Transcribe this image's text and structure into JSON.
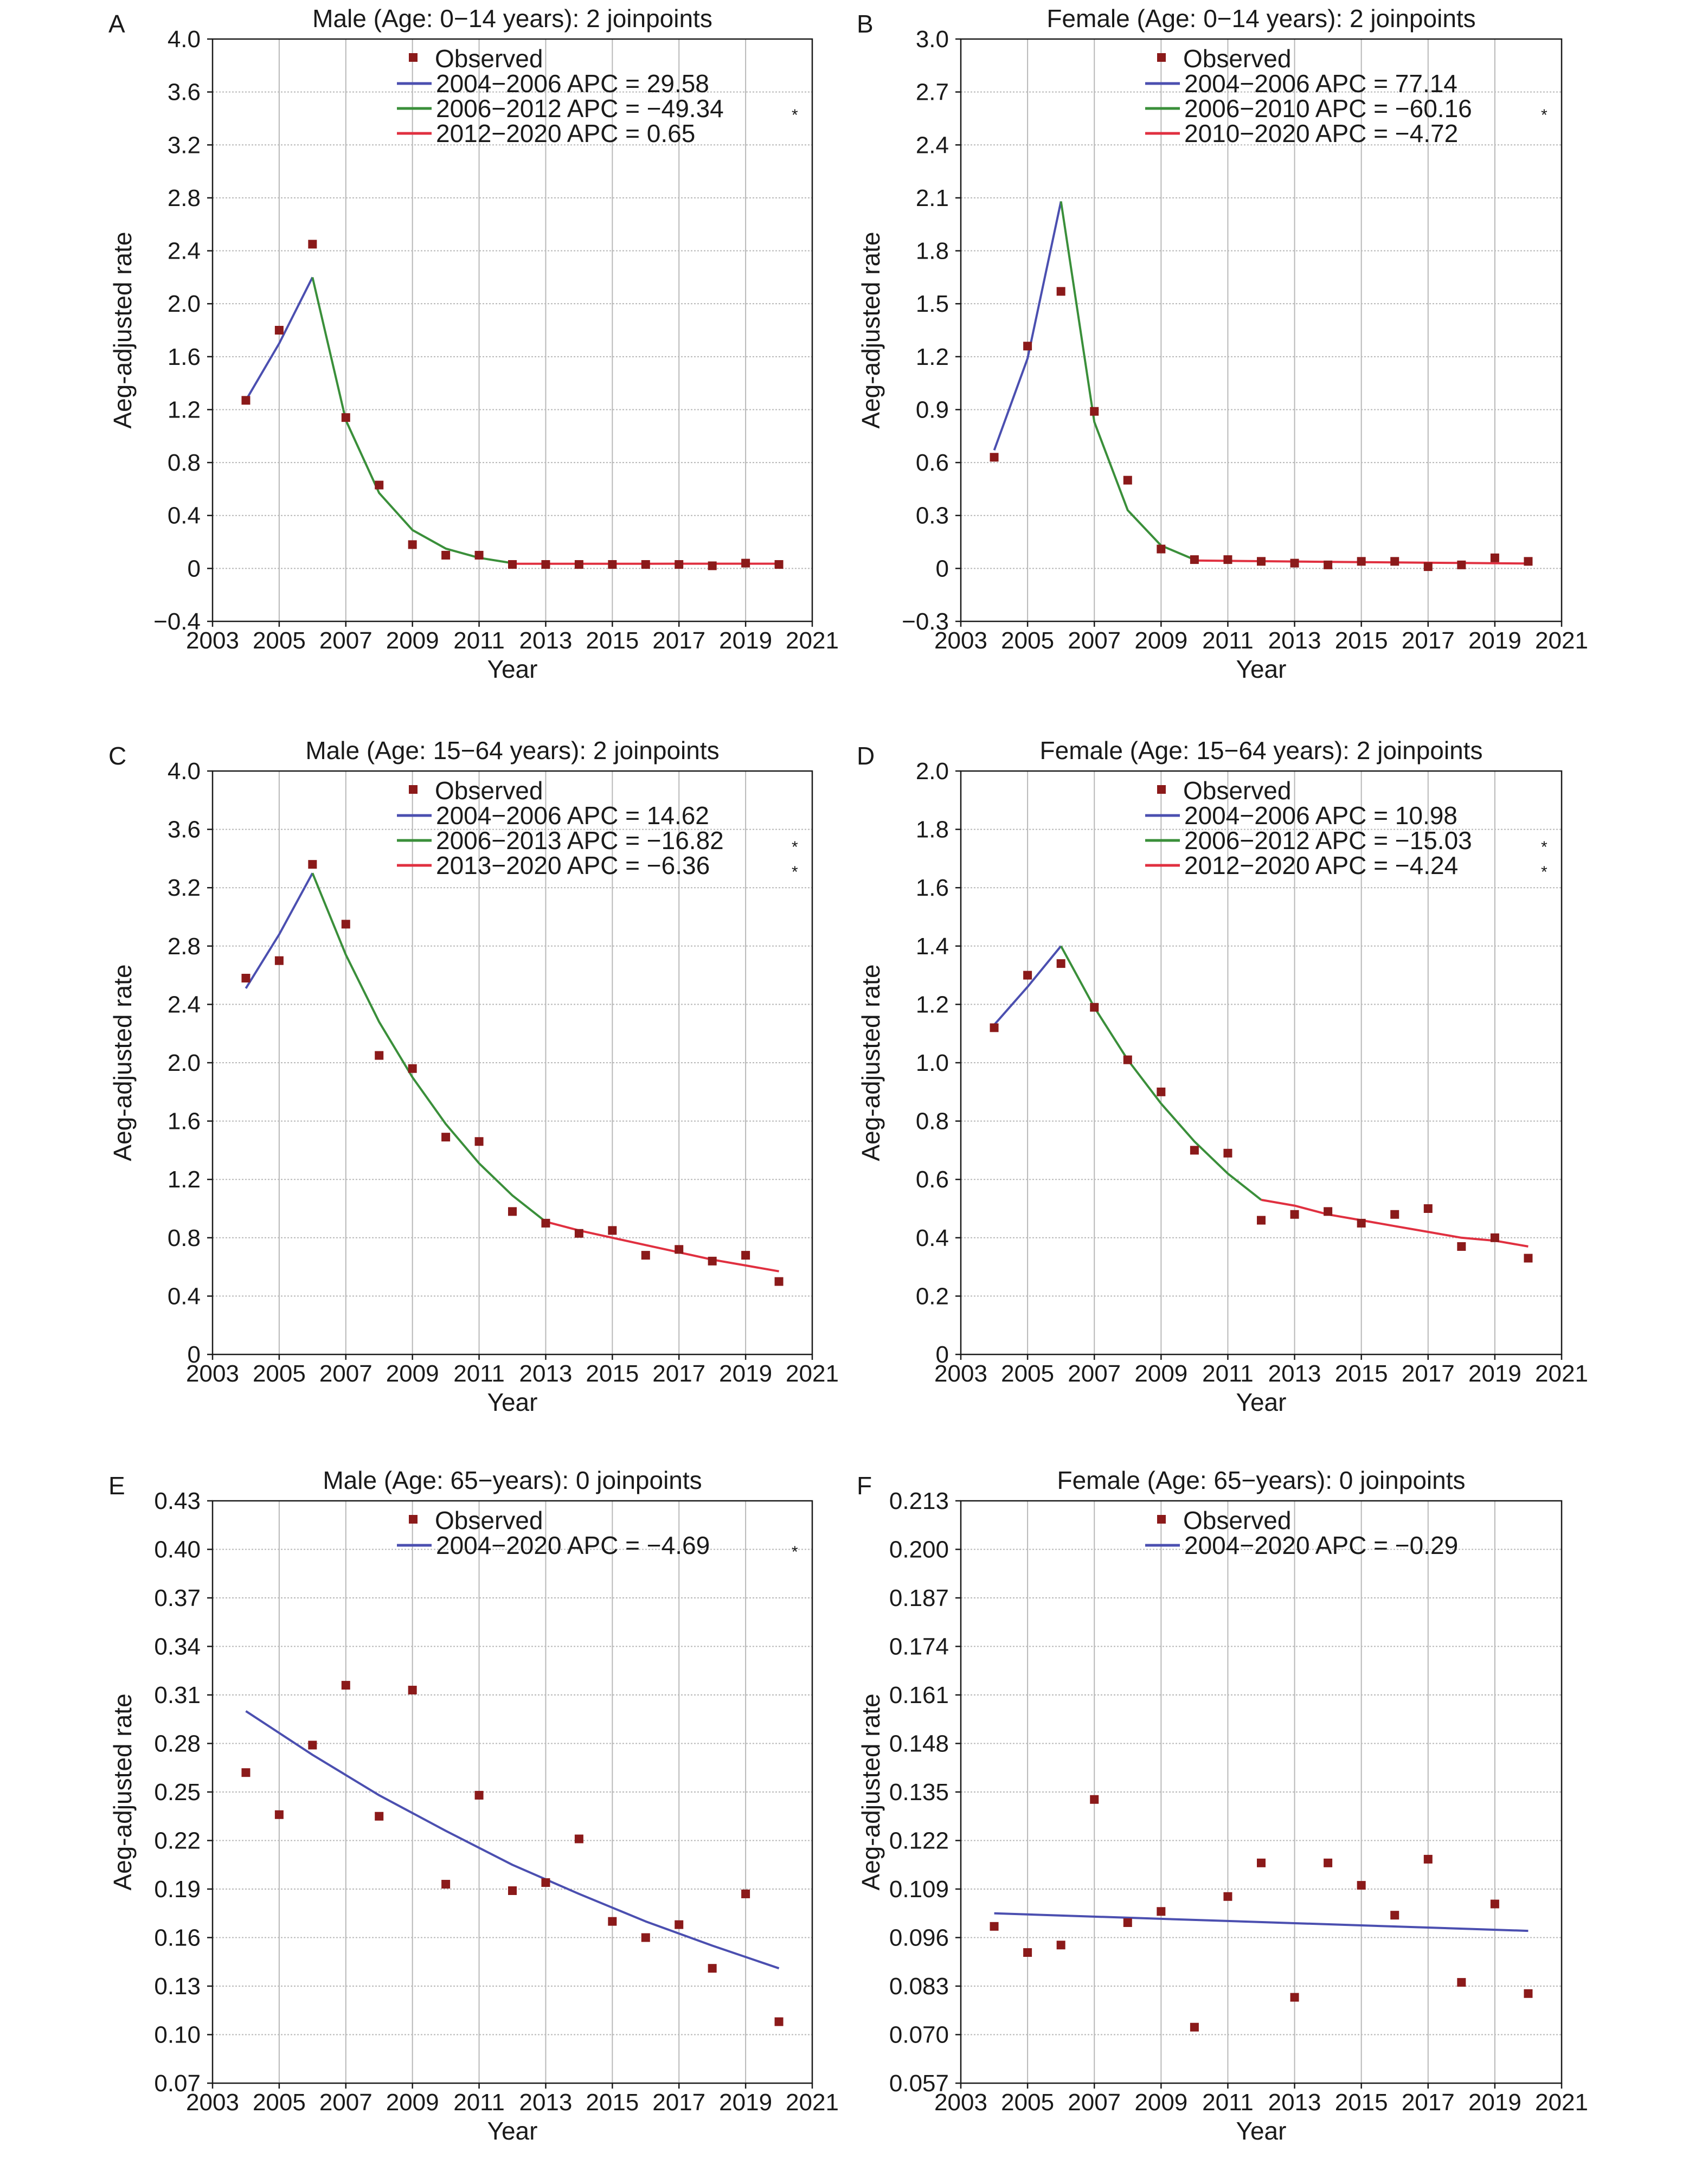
{
  "chart_data": [
    {
      "type": "line",
      "panel": "A",
      "title": "Male (Age: 0−14 years): 2 joinpoints",
      "xlabel": "Year",
      "ylabel": "Aeg-adjusted rate",
      "xlim": [
        2003,
        2021
      ],
      "x_ticks": [
        "2003",
        "2005",
        "2007",
        "2009",
        "2011",
        "2013",
        "2015",
        "2017",
        "2019",
        "2021"
      ],
      "ylim": [
        -0.4,
        4.0
      ],
      "y_ticks": [
        "−0.4",
        "0",
        "0.4",
        "0.8",
        "1.2",
        "1.6",
        "2.0",
        "2.4",
        "2.8",
        "3.2",
        "3.6",
        "4.0"
      ],
      "grid": true,
      "legend_position": "top",
      "observed_label": "Observed",
      "observed_color": "#8b1a1a",
      "observed": {
        "x": [
          2004,
          2005,
          2006,
          2007,
          2008,
          2009,
          2010,
          2011,
          2012,
          2013,
          2014,
          2015,
          2016,
          2017,
          2018,
          2019,
          2020
        ],
        "y": [
          1.27,
          1.8,
          2.45,
          1.14,
          0.63,
          0.18,
          0.1,
          0.1,
          0.03,
          0.03,
          0.03,
          0.03,
          0.03,
          0.03,
          0.02,
          0.04,
          0.03
        ]
      },
      "series": [
        {
          "name": "2004−2006 APC = 29.58",
          "significant": false,
          "color": "#4b4fb0",
          "x": [
            2004,
            2005,
            2006
          ],
          "y": [
            1.27,
            1.7,
            2.2
          ]
        },
        {
          "name": "2006−2012 APC = −49.34",
          "significant": true,
          "color": "#3a8f3a",
          "x": [
            2006,
            2007,
            2008,
            2009,
            2010,
            2011,
            2012
          ],
          "y": [
            2.2,
            1.12,
            0.57,
            0.29,
            0.15,
            0.08,
            0.04
          ]
        },
        {
          "name": "2012−2020 APC = 0.65",
          "significant": false,
          "color": "#e03040",
          "x": [
            2012,
            2013,
            2014,
            2015,
            2016,
            2017,
            2018,
            2019,
            2020
          ],
          "y": [
            0.035,
            0.035,
            0.035,
            0.035,
            0.035,
            0.036,
            0.036,
            0.036,
            0.036
          ]
        }
      ],
      "significance_marker": "*"
    },
    {
      "type": "line",
      "panel": "B",
      "title": "Female (Age: 0−14 years): 2 joinpoints",
      "xlabel": "Year",
      "ylabel": "Aeg-adjusted rate",
      "xlim": [
        2003,
        2021
      ],
      "x_ticks": [
        "2003",
        "2005",
        "2007",
        "2009",
        "2011",
        "2013",
        "2015",
        "2017",
        "2019",
        "2021"
      ],
      "ylim": [
        -0.3,
        3.0
      ],
      "y_ticks": [
        "−0.3",
        "0",
        "0.3",
        "0.6",
        "0.9",
        "1.2",
        "1.5",
        "1.8",
        "2.1",
        "2.4",
        "2.7",
        "3.0"
      ],
      "grid": true,
      "legend_position": "top",
      "observed_label": "Observed",
      "observed_color": "#8b1a1a",
      "observed": {
        "x": [
          2004,
          2005,
          2006,
          2007,
          2008,
          2009,
          2010,
          2011,
          2012,
          2013,
          2014,
          2015,
          2016,
          2017,
          2018,
          2019,
          2020
        ],
        "y": [
          0.63,
          1.26,
          1.57,
          0.89,
          0.5,
          0.11,
          0.05,
          0.05,
          0.04,
          0.03,
          0.02,
          0.04,
          0.04,
          0.01,
          0.02,
          0.06,
          0.04
        ]
      },
      "series": [
        {
          "name": "2004−2006 APC = 77.14",
          "significant": false,
          "color": "#4b4fb0",
          "x": [
            2004,
            2005,
            2006
          ],
          "y": [
            0.67,
            1.19,
            2.08
          ]
        },
        {
          "name": "2006−2010 APC = −60.16",
          "significant": true,
          "color": "#3a8f3a",
          "x": [
            2006,
            2007,
            2008,
            2009,
            2010
          ],
          "y": [
            2.08,
            0.83,
            0.33,
            0.13,
            0.05
          ]
        },
        {
          "name": "2010−2020 APC = −4.72",
          "significant": false,
          "color": "#e03040",
          "x": [
            2010,
            2012,
            2014,
            2016,
            2018,
            2020
          ],
          "y": [
            0.045,
            0.041,
            0.037,
            0.034,
            0.031,
            0.028
          ]
        }
      ],
      "significance_marker": "*"
    },
    {
      "type": "line",
      "panel": "C",
      "title": "Male (Age: 15−64 years): 2 joinpoints",
      "xlabel": "Year",
      "ylabel": "Aeg-adjusted rate",
      "xlim": [
        2003,
        2021
      ],
      "x_ticks": [
        "2003",
        "2005",
        "2007",
        "2009",
        "2011",
        "2013",
        "2015",
        "2017",
        "2019",
        "2021"
      ],
      "ylim": [
        0,
        4.0
      ],
      "y_ticks": [
        "0",
        "0.4",
        "0.8",
        "1.2",
        "1.6",
        "2.0",
        "2.4",
        "2.8",
        "3.2",
        "3.6",
        "4.0"
      ],
      "grid": true,
      "legend_position": "top",
      "observed_label": "Observed",
      "observed_color": "#8b1a1a",
      "observed": {
        "x": [
          2004,
          2005,
          2006,
          2007,
          2008,
          2009,
          2010,
          2011,
          2012,
          2013,
          2014,
          2015,
          2016,
          2017,
          2018,
          2019,
          2020
        ],
        "y": [
          2.58,
          2.7,
          3.36,
          2.95,
          2.05,
          1.96,
          1.49,
          1.46,
          0.98,
          0.9,
          0.83,
          0.85,
          0.68,
          0.72,
          0.64,
          0.68,
          0.5
        ]
      },
      "series": [
        {
          "name": "2004−2006 APC = 14.62",
          "significant": false,
          "color": "#4b4fb0",
          "x": [
            2004,
            2005,
            2006
          ],
          "y": [
            2.51,
            2.88,
            3.3
          ]
        },
        {
          "name": "2006−2013 APC = −16.82",
          "significant": true,
          "color": "#3a8f3a",
          "x": [
            2006,
            2007,
            2008,
            2009,
            2010,
            2011,
            2012,
            2013
          ],
          "y": [
            3.3,
            2.74,
            2.28,
            1.9,
            1.58,
            1.31,
            1.09,
            0.91
          ]
        },
        {
          "name": "2013−2020 APC = −6.36",
          "significant": true,
          "color": "#e03040",
          "x": [
            2013,
            2014,
            2015,
            2016,
            2017,
            2018,
            2019,
            2020
          ],
          "y": [
            0.91,
            0.85,
            0.8,
            0.75,
            0.7,
            0.65,
            0.61,
            0.57
          ]
        }
      ],
      "significance_marker": "*"
    },
    {
      "type": "line",
      "panel": "D",
      "title": "Female (Age: 15−64 years): 2 joinpoints",
      "xlabel": "Year",
      "ylabel": "Aeg-adjusted rate",
      "xlim": [
        2003,
        2021
      ],
      "x_ticks": [
        "2003",
        "2005",
        "2007",
        "2009",
        "2011",
        "2013",
        "2015",
        "2017",
        "2019",
        "2021"
      ],
      "ylim": [
        0,
        2.0
      ],
      "y_ticks": [
        "0",
        "0.2",
        "0.4",
        "0.6",
        "0.8",
        "1.0",
        "1.2",
        "1.4",
        "1.6",
        "1.8",
        "2.0"
      ],
      "grid": true,
      "legend_position": "top",
      "observed_label": "Observed",
      "observed_color": "#8b1a1a",
      "observed": {
        "x": [
          2004,
          2005,
          2006,
          2007,
          2008,
          2009,
          2010,
          2011,
          2012,
          2013,
          2014,
          2015,
          2016,
          2017,
          2018,
          2019,
          2020
        ],
        "y": [
          1.12,
          1.3,
          1.34,
          1.19,
          1.01,
          0.9,
          0.7,
          0.69,
          0.46,
          0.48,
          0.49,
          0.45,
          0.48,
          0.5,
          0.37,
          0.4,
          0.33
        ]
      },
      "series": [
        {
          "name": "2004−2006 APC = 10.98",
          "significant": false,
          "color": "#4b4fb0",
          "x": [
            2004,
            2005,
            2006
          ],
          "y": [
            1.13,
            1.26,
            1.4
          ]
        },
        {
          "name": "2006−2012 APC = −15.03",
          "significant": true,
          "color": "#3a8f3a",
          "x": [
            2006,
            2007,
            2008,
            2009,
            2010,
            2011,
            2012
          ],
          "y": [
            1.4,
            1.19,
            1.01,
            0.86,
            0.73,
            0.62,
            0.53
          ]
        },
        {
          "name": "2012−2020 APC = −4.24",
          "significant": true,
          "color": "#e03040",
          "x": [
            2012,
            2013,
            2014,
            2015,
            2016,
            2017,
            2018,
            2019,
            2020
          ],
          "y": [
            0.53,
            0.51,
            0.48,
            0.46,
            0.44,
            0.42,
            0.4,
            0.39,
            0.37
          ]
        }
      ],
      "significance_marker": "*"
    },
    {
      "type": "line",
      "panel": "E",
      "title": "Male (Age: 65−years): 0 joinpoints",
      "xlabel": "Year",
      "ylabel": "Aeg-adjusted rate",
      "xlim": [
        2003,
        2021
      ],
      "x_ticks": [
        "2003",
        "2005",
        "2007",
        "2009",
        "2011",
        "2013",
        "2015",
        "2017",
        "2019",
        "2021"
      ],
      "ylim": [
        0.07,
        0.43
      ],
      "y_ticks": [
        "0.07",
        "0.10",
        "0.13",
        "0.16",
        "0.19",
        "0.22",
        "0.25",
        "0.28",
        "0.31",
        "0.34",
        "0.37",
        "0.40",
        "0.43"
      ],
      "grid": true,
      "legend_position": "top",
      "observed_label": "Observed",
      "observed_color": "#8b1a1a",
      "observed": {
        "x": [
          2004,
          2005,
          2006,
          2007,
          2008,
          2009,
          2010,
          2011,
          2012,
          2013,
          2014,
          2015,
          2016,
          2017,
          2018,
          2019,
          2020
        ],
        "y": [
          0.262,
          0.236,
          0.279,
          0.316,
          0.235,
          0.313,
          0.193,
          0.248,
          0.189,
          0.194,
          0.221,
          0.17,
          0.16,
          0.168,
          0.141,
          0.187,
          0.108
        ]
      },
      "series": [
        {
          "name": "2004−2020 APC = −4.69",
          "significant": true,
          "color": "#4b4fb0",
          "x": [
            2004,
            2006,
            2008,
            2010,
            2012,
            2014,
            2016,
            2018,
            2020
          ],
          "y": [
            0.3,
            0.273,
            0.248,
            0.226,
            0.205,
            0.187,
            0.17,
            0.155,
            0.141
          ]
        }
      ],
      "significance_marker": "*"
    },
    {
      "type": "line",
      "panel": "F",
      "title": "Female (Age: 65−years): 0 joinpoints",
      "xlabel": "Year",
      "ylabel": "Aeg-adjusted rate",
      "xlim": [
        2003,
        2021
      ],
      "x_ticks": [
        "2003",
        "2005",
        "2007",
        "2009",
        "2011",
        "2013",
        "2015",
        "2017",
        "2019",
        "2021"
      ],
      "ylim": [
        0.057,
        0.213
      ],
      "y_ticks": [
        "0.057",
        "0.070",
        "0.083",
        "0.096",
        "0.109",
        "0.122",
        "0.135",
        "0.148",
        "0.161",
        "0.174",
        "0.187",
        "0.200",
        "0.213"
      ],
      "grid": true,
      "legend_position": "top",
      "observed_label": "Observed",
      "observed_color": "#8b1a1a",
      "observed": {
        "x": [
          2004,
          2005,
          2006,
          2007,
          2008,
          2009,
          2010,
          2011,
          2012,
          2013,
          2014,
          2015,
          2016,
          2017,
          2018,
          2019,
          2020
        ],
        "y": [
          0.099,
          0.092,
          0.094,
          0.133,
          0.1,
          0.103,
          0.072,
          0.107,
          0.116,
          0.08,
          0.116,
          0.11,
          0.102,
          0.117,
          0.084,
          0.105,
          0.081
        ]
      },
      "series": [
        {
          "name": "2004−2020 APC = −0.29",
          "significant": false,
          "color": "#4b4fb0",
          "x": [
            2004,
            2020
          ],
          "y": [
            0.1025,
            0.0978
          ]
        }
      ],
      "significance_marker": ""
    }
  ]
}
